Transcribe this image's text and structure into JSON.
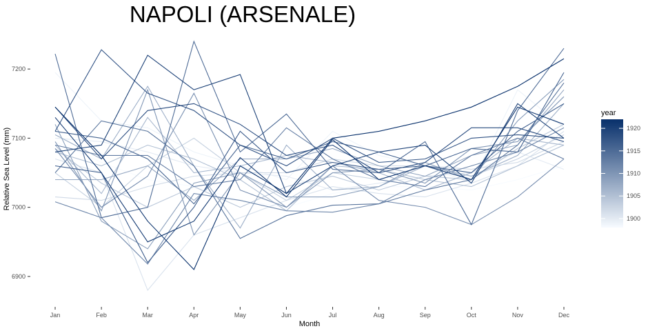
{
  "chart_data": {
    "type": "line",
    "title": "NAPOLI (ARSENALE)",
    "xlabel": "Month",
    "ylabel": "Relative Sea Level (mm)",
    "categories": [
      "Jan",
      "Feb",
      "Mar",
      "Apr",
      "May",
      "Jun",
      "Jul",
      "Aug",
      "Sep",
      "Oct",
      "Nov",
      "Dec"
    ],
    "ylim": [
      6860,
      7250
    ],
    "yticks": [
      6900,
      7000,
      7100,
      7200
    ],
    "grid": false,
    "legend": {
      "title": "year",
      "position": "right",
      "type": "colorbar",
      "ticks": [
        1900,
        1905,
        1910,
        1915,
        1920
      ],
      "range": [
        1898,
        1922
      ],
      "low_color": "#f7fbff",
      "high_color": "#08306b"
    },
    "series": [
      {
        "year": 1898,
        "values": [
          7095,
          7065,
          7040,
          7030,
          7010,
          7000,
          7020,
          7030,
          7030,
          7025,
          7040,
          7060
        ]
      },
      {
        "year": 1899,
        "values": [
          7195,
          7125,
          7115,
          7080,
          7060,
          7040,
          7110,
          7075,
          7060,
          7035,
          7170,
          7115
        ]
      },
      {
        "year": 1900,
        "values": [
          7100,
          7095,
          7080,
          7060,
          7050,
          7045,
          7025,
          7035,
          7045,
          7050,
          7080,
          7055
        ]
      },
      {
        "year": 1901,
        "values": [
          7070,
          7050,
          6880,
          6960,
          6985,
          7010,
          7030,
          7020,
          7015,
          7035,
          7060,
          7110
        ]
      },
      {
        "year": 1902,
        "values": [
          7015,
          7010,
          7030,
          7045,
          7050,
          7050,
          7070,
          7060,
          7060,
          7055,
          7065,
          7095
        ]
      },
      {
        "year": 1903,
        "values": [
          7050,
          7000,
          7060,
          7100,
          7050,
          7010,
          7050,
          7040,
          7060,
          7045,
          7070,
          7105
        ]
      },
      {
        "year": 1904,
        "values": [
          7085,
          7035,
          7000,
          7030,
          7000,
          7030,
          7045,
          7025,
          7045,
          7040,
          7085,
          7120
        ]
      },
      {
        "year": 1905,
        "values": [
          7080,
          7060,
          7090,
          7070,
          7040,
          6995,
          7060,
          7055,
          7040,
          7030,
          7060,
          7090
        ]
      },
      {
        "year": 1906,
        "values": [
          7090,
          7020,
          7130,
          7050,
          7060,
          7075,
          7065,
          7050,
          7025,
          7050,
          7100,
          7090
        ]
      },
      {
        "year": 1907,
        "values": [
          7105,
          7070,
          7175,
          7060,
          6970,
          7090,
          7025,
          7030,
          7060,
          7045,
          7075,
          7150
        ]
      },
      {
        "year": 1908,
        "values": [
          7040,
          7040,
          7060,
          7010,
          7070,
          7070,
          7085,
          7060,
          7045,
          7075,
          7090,
          7170
        ]
      },
      {
        "year": 1909,
        "values": [
          7120,
          6980,
          6940,
          7035,
          7050,
          7015,
          7015,
          7030,
          7065,
          7040,
          7125,
          7185
        ]
      },
      {
        "year": 1910,
        "values": [
          7095,
          6995,
          7170,
          6960,
          7050,
          7000,
          7050,
          7055,
          7035,
          7085,
          7095,
          7160
        ]
      },
      {
        "year": 1911,
        "values": [
          7085,
          7000,
          7045,
          7165,
          7025,
          7000,
          7060,
          7010,
          7000,
          6975,
          7015,
          7070
        ]
      },
      {
        "year": 1912,
        "values": [
          7008,
          6985,
          6918,
          7020,
          7010,
          6995,
          6993,
          7005,
          7040,
          7060,
          7080,
          7115
        ]
      },
      {
        "year": 1913,
        "values": [
          7090,
          7075,
          7075,
          7030,
          7040,
          7115,
          7070,
          7040,
          7030,
          7075,
          7100,
          7070
        ]
      },
      {
        "year": 1914,
        "values": [
          7050,
          7125,
          7110,
          7060,
          6955,
          6988,
          7003,
          7005,
          7025,
          7040,
          7090,
          7180
        ]
      },
      {
        "year": 1915,
        "values": [
          7222,
          6985,
          7000,
          7240,
          7080,
          7135,
          7055,
          7050,
          7095,
          6975,
          7140,
          7230
        ]
      },
      {
        "year": 1916,
        "values": [
          7110,
          7100,
          7070,
          7005,
          7090,
          7070,
          7095,
          7080,
          7060,
          7085,
          7080,
          7195
        ]
      },
      {
        "year": 1917,
        "values": [
          7060,
          7050,
          6920,
          7000,
          7110,
          7050,
          7065,
          7055,
          7060,
          7050,
          7110,
          7150
        ]
      },
      {
        "year": 1918,
        "values": [
          7110,
          7228,
          7165,
          7140,
          7090,
          7060,
          7100,
          7065,
          7070,
          7100,
          7105,
          7100
        ]
      },
      {
        "year": 1919,
        "values": [
          7145,
          7070,
          7140,
          7150,
          7120,
          7075,
          7090,
          7050,
          7065,
          7115,
          7115,
          7095
        ]
      },
      {
        "year": 1920,
        "values": [
          7080,
          7090,
          7220,
          7170,
          7192,
          7020,
          7060,
          7080,
          7090,
          7035,
          7150,
          7100
        ]
      },
      {
        "year": 1921,
        "values": [
          7130,
          7050,
          6950,
          6980,
          7072,
          7015,
          7098,
          7040,
          7060,
          7040,
          7145,
          7120
        ]
      },
      {
        "year": 1922,
        "values": [
          7145,
          7075,
          6980,
          6910,
          7060,
          7020,
          7100,
          7110,
          7125,
          7145,
          7175,
          7215
        ]
      }
    ]
  }
}
